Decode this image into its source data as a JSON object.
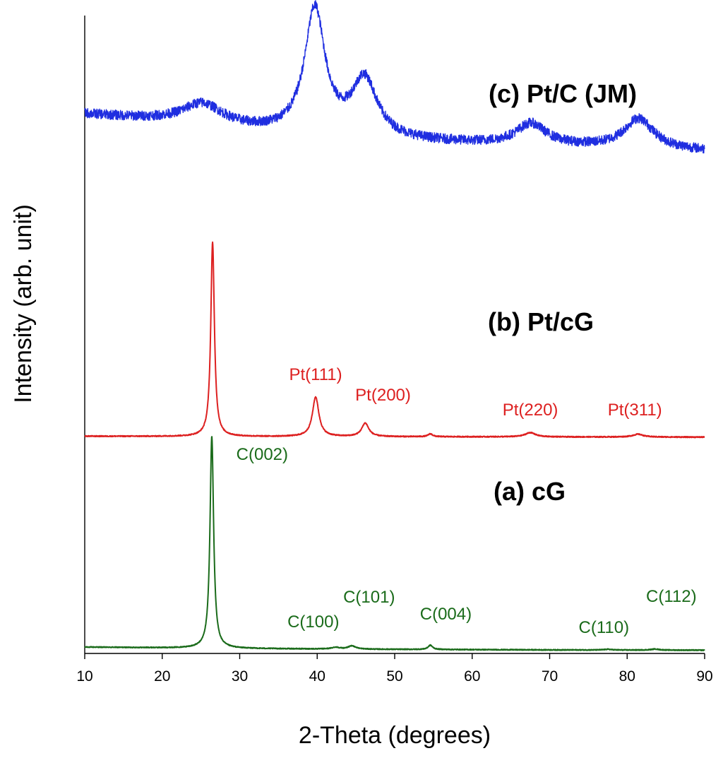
{
  "chart_data": {
    "type": "line",
    "title": "",
    "xlabel": "2-Theta (degrees)",
    "ylabel": "Intensity (arb. unit)",
    "xlim": [
      10,
      90
    ],
    "xticks": [
      10,
      20,
      30,
      40,
      50,
      60,
      70,
      80,
      90
    ],
    "yticks_shown": false,
    "grid": false,
    "legend": "none",
    "series": [
      {
        "name": "(a) cG",
        "color": "#1a6b1a",
        "offset": 0,
        "noise": 0.6,
        "baseline": [
          [
            10,
            6.0
          ],
          [
            20,
            5.0
          ],
          [
            30,
            4.0
          ],
          [
            40,
            3.3
          ],
          [
            50,
            2.8
          ],
          [
            60,
            2.4
          ],
          [
            70,
            2.0
          ],
          [
            80,
            1.8
          ],
          [
            90,
            1.6
          ]
        ],
        "peaks": [
          {
            "x": 26.4,
            "height": 300,
            "width": 0.28
          },
          {
            "x": 42.4,
            "height": 2.5,
            "width": 0.6
          },
          {
            "x": 44.5,
            "height": 4.5,
            "width": 0.6
          },
          {
            "x": 54.6,
            "height": 6.0,
            "width": 0.35
          },
          {
            "x": 77.5,
            "height": 1.0,
            "width": 0.6
          },
          {
            "x": 83.6,
            "height": 1.5,
            "width": 0.6
          }
        ],
        "annotations": [
          {
            "text": "C(002)",
            "x": 32.9,
            "y": 271
          },
          {
            "text": "C(100)",
            "x": 39.5,
            "y": 34
          },
          {
            "text": "C(101)",
            "x": 46.7,
            "y": 69
          },
          {
            "text": "C(004)",
            "x": 56.6,
            "y": 45
          },
          {
            "text": "C(110)",
            "x": 77.0,
            "y": 26
          },
          {
            "text": "C(112)",
            "x": 85.7,
            "y": 70
          }
        ]
      },
      {
        "name": "(b) Pt/cG",
        "color": "#dd2020",
        "offset": 302,
        "noise": 0.7,
        "baseline": [
          [
            10,
            2.5
          ],
          [
            30,
            2.0
          ],
          [
            50,
            1.8
          ],
          [
            70,
            1.5
          ],
          [
            90,
            1.2
          ]
        ],
        "peaks": [
          {
            "x": 26.5,
            "height": 275,
            "width": 0.28
          },
          {
            "x": 39.8,
            "height": 56,
            "width": 0.5
          },
          {
            "x": 46.2,
            "height": 19,
            "width": 0.55
          },
          {
            "x": 54.6,
            "height": 4,
            "width": 0.35
          },
          {
            "x": 67.5,
            "height": 6,
            "width": 0.8
          },
          {
            "x": 81.4,
            "height": 4,
            "width": 0.8
          }
        ],
        "annotations": [
          {
            "text": "Pt(111)",
            "x": 39.8,
            "y": 384
          },
          {
            "text": "Pt(200)",
            "x": 48.5,
            "y": 355
          },
          {
            "text": "Pt(220)",
            "x": 67.5,
            "y": 334
          },
          {
            "text": "Pt(311)",
            "x": 81.0,
            "y": 334
          }
        ]
      },
      {
        "name": "(c) Pt/C (JM)",
        "color": "#1f2ee0",
        "offset": 570,
        "noise": 7,
        "baseline": [
          [
            10,
            190
          ],
          [
            20,
            180
          ],
          [
            30,
            168
          ],
          [
            40,
            158
          ],
          [
            50,
            152
          ],
          [
            60,
            148
          ],
          [
            70,
            145
          ],
          [
            80,
            142
          ],
          [
            90,
            138
          ]
        ],
        "peaks": [
          {
            "x": 25.2,
            "height": 30,
            "width": 3.2
          },
          {
            "x": 39.7,
            "height": 178,
            "width": 1.6
          },
          {
            "x": 46.1,
            "height": 82,
            "width": 2.0
          },
          {
            "x": 67.6,
            "height": 30,
            "width": 2.3
          },
          {
            "x": 81.5,
            "height": 42,
            "width": 2.3
          }
        ],
        "annotations": []
      }
    ]
  }
}
